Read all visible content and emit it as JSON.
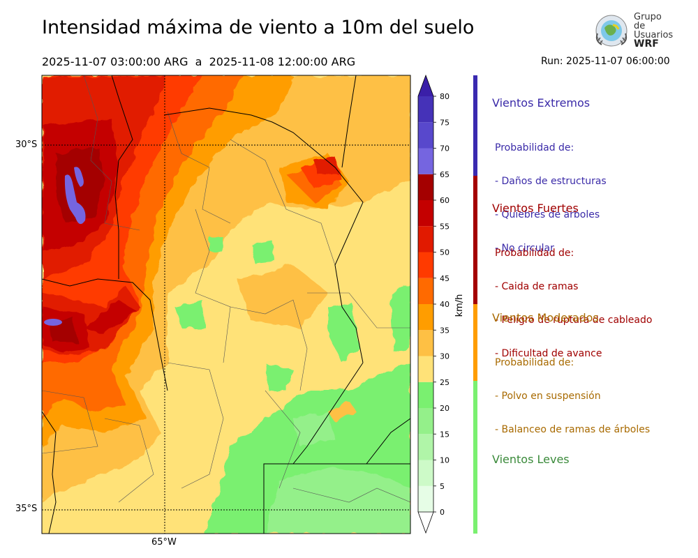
{
  "header": {
    "title": "Intensidad máxima de viento a 10m del suelo",
    "period": "2025-11-07 03:00:00 ARG  a  2025-11-08 12:00:00 ARG",
    "run": "Run: 2025-11-07 06:00:00"
  },
  "logo": {
    "line1": "Grupo de",
    "line2": "Usuarios",
    "line3": "WRF"
  },
  "map": {
    "lat_labels": [
      "30°S",
      "35°S"
    ],
    "lon_labels": [
      "65°W"
    ]
  },
  "colorbar": {
    "unit": "km/h",
    "ticks": [
      "80",
      "75",
      "70",
      "65",
      "60",
      "55",
      "50",
      "45",
      "40",
      "35",
      "30",
      "25",
      "20",
      "15",
      "10",
      "5",
      "0"
    ],
    "bins": [
      {
        "min": 0,
        "max": 5,
        "color": "#e6fde6"
      },
      {
        "min": 5,
        "max": 10,
        "color": "#cdfac8"
      },
      {
        "min": 10,
        "max": 15,
        "color": "#b0f5a8"
      },
      {
        "min": 15,
        "max": 20,
        "color": "#94f08a"
      },
      {
        "min": 20,
        "max": 25,
        "color": "#7af070"
      },
      {
        "min": 25,
        "max": 30,
        "color": "#ffe278"
      },
      {
        "min": 30,
        "max": 35,
        "color": "#fec044"
      },
      {
        "min": 35,
        "max": 40,
        "color": "#ff9d00"
      },
      {
        "min": 40,
        "max": 45,
        "color": "#ff6a00"
      },
      {
        "min": 45,
        "max": 50,
        "color": "#ff3a00"
      },
      {
        "min": 50,
        "max": 55,
        "color": "#e11a00"
      },
      {
        "min": 55,
        "max": 60,
        "color": "#c40000"
      },
      {
        "min": 60,
        "max": 65,
        "color": "#a40000"
      },
      {
        "min": 65,
        "max": 70,
        "color": "#7565e0"
      },
      {
        "min": 70,
        "max": 75,
        "color": "#5848cc"
      },
      {
        "min": 75,
        "max": 80,
        "color": "#4532b8"
      },
      {
        "min": 80,
        "max": 85,
        "color": "#3a1fa8"
      }
    ]
  },
  "categories": [
    {
      "name": "Vientos Extremos",
      "color": "#3a2aa8",
      "lines": [
        "Probabilidad de:",
        "- Daños de estructuras",
        "- Quiebres de árboles",
        "- No circular"
      ]
    },
    {
      "name": "Vientos Fuertes",
      "color": "#a00000",
      "lines": [
        "Probabilidad de:",
        "- Caida de ramas",
        "- Peligro de ruptura de cableado",
        "- Dificultad de avance"
      ]
    },
    {
      "name": "Vientos Moderados",
      "color": "#a86a00",
      "lines": [
        "Probabilidad de:",
        "- Polvo en suspensión",
        "- Balanceo de ramas de árboles"
      ]
    },
    {
      "name": "Vientos Leves",
      "color": "#3a8a3a",
      "lines": []
    }
  ]
}
